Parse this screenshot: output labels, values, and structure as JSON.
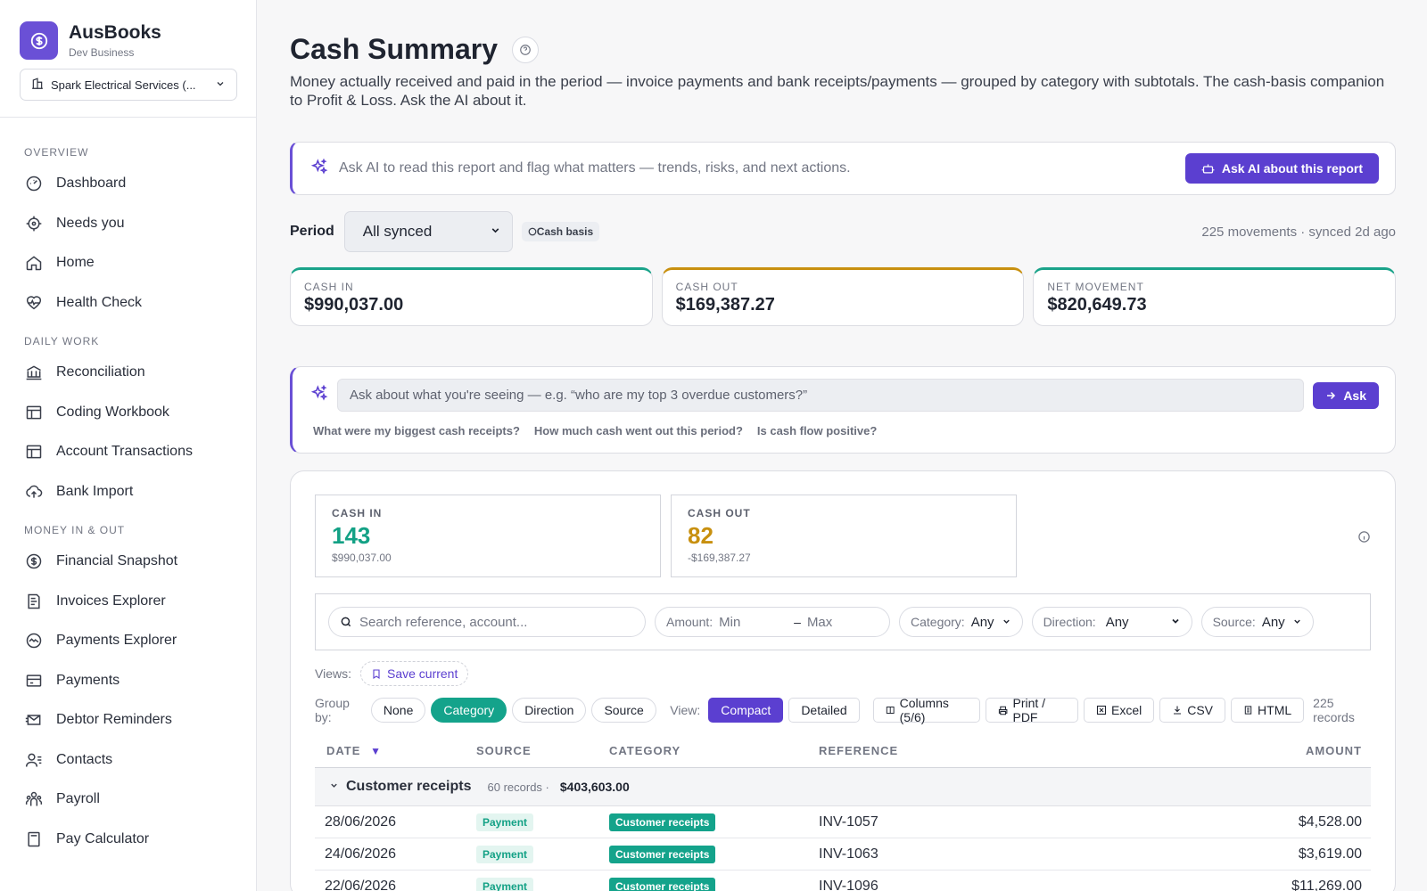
{
  "brand": {
    "name": "AusBooks",
    "subtitle": "Dev Business"
  },
  "org_selector": {
    "value": "Spark Electrical Services (..."
  },
  "nav": {
    "overview_title": "OVERVIEW",
    "overview": [
      "Dashboard",
      "Needs you",
      "Home",
      "Health Check"
    ],
    "daily_title": "DAILY WORK",
    "daily": [
      "Reconciliation",
      "Coding Workbook",
      "Account Transactions",
      "Bank Import"
    ],
    "money_title": "MONEY IN & OUT",
    "money": [
      "Financial Snapshot",
      "Invoices Explorer",
      "Payments Explorer",
      "Payments",
      "Debtor Reminders",
      "Contacts",
      "Payroll",
      "Pay Calculator"
    ]
  },
  "page": {
    "title": "Cash Summary",
    "description": "Money actually received and paid in the period — invoice payments and bank receipts/payments — grouped by category with subtotals. The cash-basis companion to Profit & Loss. Ask the AI about it."
  },
  "ai_banner": {
    "text": "Ask AI to read this report and flag what matters — trends, risks, and next actions.",
    "button": "Ask AI about this report"
  },
  "period": {
    "label": "Period",
    "value": "All synced",
    "basis_badge": "Cash basis",
    "meta": "225 movements · synced 2d ago"
  },
  "kpis": {
    "cash_in": {
      "label": "CASH IN",
      "value": "$990,037.00"
    },
    "cash_out": {
      "label": "CASH OUT",
      "value": "$169,387.27"
    },
    "net": {
      "label": "NET MOVEMENT",
      "value": "$820,649.73"
    }
  },
  "ask": {
    "placeholder": "Ask about what you're seeing — e.g. “who are my top 3 overdue customers?”",
    "button": "Ask",
    "suggestions": [
      "What were my biggest cash receipts?",
      "How much cash went out this period?",
      "Is cash flow positive?"
    ]
  },
  "stats": {
    "in": {
      "label": "CASH IN",
      "count": "143",
      "amount": "$990,037.00"
    },
    "out": {
      "label": "CASH OUT",
      "count": "82",
      "amount": "-$169,387.27"
    }
  },
  "filters": {
    "search_placeholder": "Search reference, account...",
    "amount_label": "Amount:",
    "amount_min": "Min",
    "amount_dash": "–",
    "amount_max": "Max",
    "category_label": "Category:",
    "category_value": "Any",
    "direction_label": "Direction:",
    "direction_value": "Any",
    "source_label": "Source:",
    "source_value": "Any"
  },
  "views": {
    "label": "Views:",
    "save": "Save current"
  },
  "toolbar": {
    "group_label": "Group by:",
    "group_options": [
      "None",
      "Category",
      "Direction",
      "Source"
    ],
    "view_label": "View:",
    "view_options": [
      "Compact",
      "Detailed"
    ],
    "columns": "Columns (5/6)",
    "print": "Print / PDF",
    "excel": "Excel",
    "csv": "CSV",
    "html": "HTML",
    "records": "225 records"
  },
  "table": {
    "headers": {
      "date": "DATE",
      "sort_indicator": "▼",
      "source": "SOURCE",
      "category": "CATEGORY",
      "reference": "REFERENCE",
      "amount": "AMOUNT"
    },
    "group": {
      "name": "Customer receipts",
      "count": "60 records ·",
      "total": "$403,603.00"
    },
    "rows": [
      {
        "date": "28/06/2026",
        "source": "Payment",
        "category": "Customer receipts",
        "reference": "INV-1057",
        "amount": "$4,528.00"
      },
      {
        "date": "24/06/2026",
        "source": "Payment",
        "category": "Customer receipts",
        "reference": "INV-1063",
        "amount": "$3,619.00"
      },
      {
        "date": "22/06/2026",
        "source": "Payment",
        "category": "Customer receipts",
        "reference": "INV-1096",
        "amount": "$11,269.00"
      }
    ]
  }
}
